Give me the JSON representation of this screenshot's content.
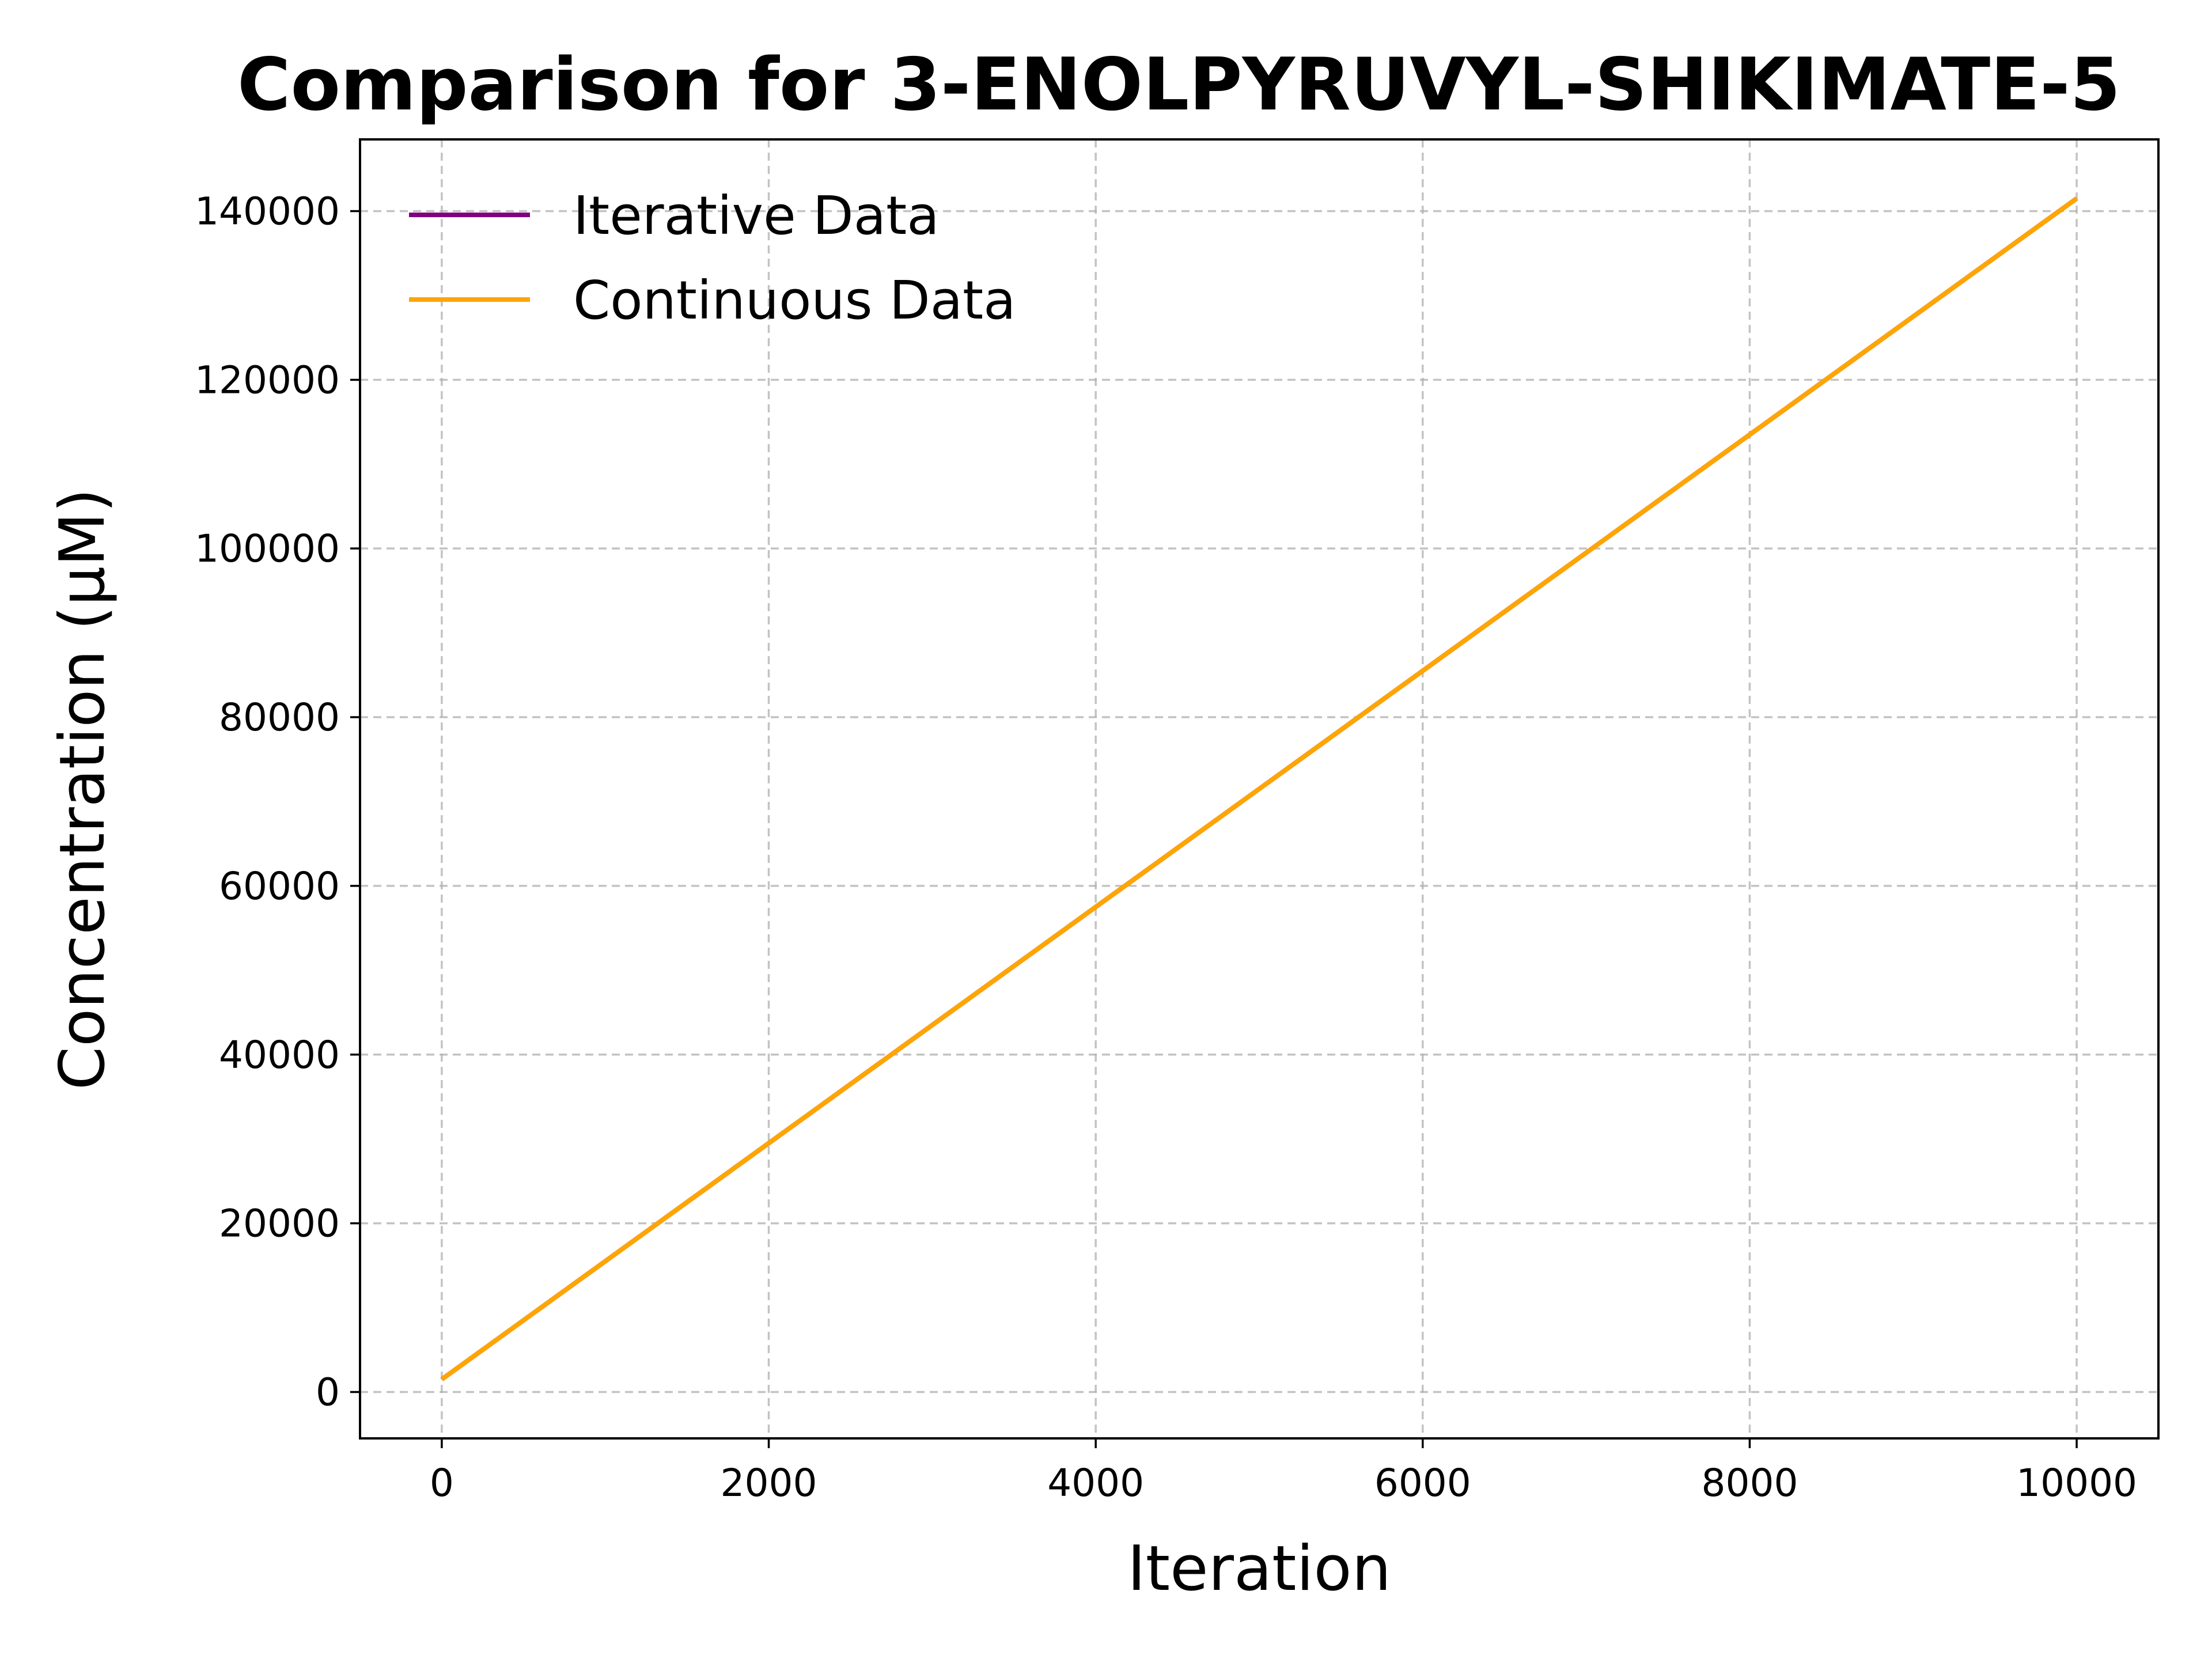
{
  "chart_data": {
    "type": "line",
    "title": "Comparison for 3-ENOLPYRUVYL-SHIKIMATE-5",
    "xlabel": "Iteration",
    "ylabel": "Concentration (μM)",
    "xlim": [
      -500,
      10500
    ],
    "ylim": [
      -5500,
      148500
    ],
    "x_ticks": [
      0,
      2000,
      4000,
      6000,
      8000,
      10000
    ],
    "x_tick_labels": [
      "0",
      "2000",
      "4000",
      "6000",
      "8000",
      "10000"
    ],
    "y_ticks": [
      0,
      20000,
      40000,
      60000,
      80000,
      100000,
      120000,
      140000
    ],
    "y_tick_labels": [
      "0",
      "20000",
      "40000",
      "60000",
      "80000",
      "100000",
      "120000",
      "140000"
    ],
    "grid": true,
    "legend_position": "upper-left",
    "series": [
      {
        "name": "Iterative Data",
        "color": "#800080",
        "x": [
          0,
          10000
        ],
        "y": [
          1500,
          141500
        ]
      },
      {
        "name": "Continuous Data",
        "color": "#FFA500",
        "x": [
          0,
          10000
        ],
        "y": [
          1500,
          141500
        ]
      }
    ]
  }
}
